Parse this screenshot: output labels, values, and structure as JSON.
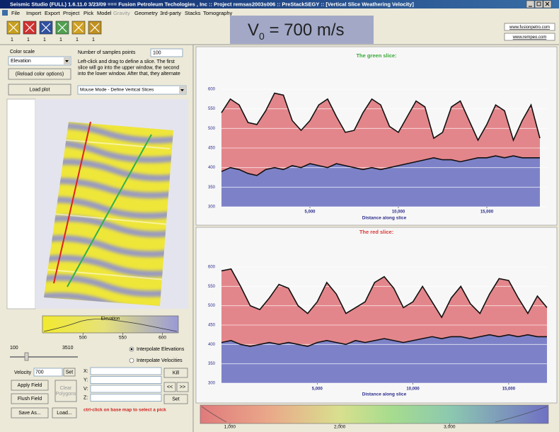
{
  "window": {
    "title": "Seismic Studio (FULL) 1.6.11.0 3/23/09 === Fusion Petroleum Techologies , Inc :: Project remsas2003s006 :: PreStackSEGY :: [Vertical Slice Weathering Velocity]"
  },
  "menu": [
    "File",
    "Import",
    "Export",
    "Project",
    "Pick",
    "Model",
    "Gravity",
    "Geometry",
    "3rd-party",
    "Stacks",
    "Tomography"
  ],
  "toolbar_counts": [
    "1",
    "1",
    "1",
    "1",
    "1",
    "1"
  ],
  "overlay": {
    "base": "V",
    "sub": "0",
    "rest": " = 700 m/s"
  },
  "links": [
    "www.fusionpetro.com",
    "www.rempeo.com"
  ],
  "left_panel": {
    "color_scale_label": "Color scale",
    "color_scale_value": "Elevation",
    "reload_button": "(Reload color options)",
    "load_plot_button": "Load plot",
    "samples_label": "Number of samples points",
    "samples_value": "100",
    "instructions": [
      "Left-click and drag to define a slice.  The first",
      "slice will go into the upper window, the second",
      "into the lower window.  After that, they alternate"
    ],
    "mouse_mode": "Mouse Mode - Define Vertical Slices",
    "elevation_scale": {
      "label": "Elevation",
      "xlim": [
        449,
        620
      ],
      "xticks": [
        500,
        550,
        600
      ]
    },
    "slider_min": "100",
    "slider_max": "3510",
    "radio_elevations": "Interpolate Elevations",
    "radio_velocities": "Interpolate Velocities",
    "velocity_label": "Velocity",
    "velocity_value": "700",
    "set_button": "Set",
    "apply_button": "Apply Field",
    "clear_button": [
      "Clear",
      "Polygons"
    ],
    "flush_button": "Flush Field",
    "save_button": "Save As...",
    "load_button": "Load...",
    "coord_labels": [
      "X:",
      "Y:",
      "V:",
      "Z:"
    ],
    "kill_button": "Kill",
    "prev_button": "<<",
    "next_button": ">>",
    "set2_button": "Set",
    "hint": "ctrl-click on base map to select a pick"
  },
  "chart_data": [
    {
      "type": "area",
      "title": "The green slice:",
      "title_color": "#3aa83a",
      "x_label": "Distance along slice",
      "x": [
        0,
        500,
        1000,
        1500,
        2000,
        2500,
        3000,
        3500,
        4000,
        4500,
        5000,
        5500,
        6000,
        6500,
        7000,
        7500,
        8000,
        8500,
        9000,
        9500,
        10000,
        10500,
        11000,
        11500,
        12000,
        12500,
        13000,
        13500,
        14000,
        14500,
        15000,
        15500,
        16000,
        16500,
        17000,
        17500,
        18000
      ],
      "series": [
        {
          "color": "#e3868b",
          "values": [
            540,
            575,
            560,
            515,
            510,
            545,
            590,
            585,
            520,
            495,
            520,
            560,
            575,
            530,
            490,
            495,
            540,
            575,
            560,
            505,
            490,
            530,
            570,
            555,
            475,
            490,
            555,
            570,
            520,
            470,
            510,
            560,
            545,
            470,
            520,
            560,
            475
          ]
        },
        {
          "color": "#7d82c8",
          "values": [
            390,
            400,
            395,
            385,
            380,
            395,
            400,
            395,
            405,
            400,
            410,
            405,
            400,
            410,
            405,
            400,
            395,
            400,
            395,
            400,
            405,
            410,
            415,
            420,
            425,
            420,
            420,
            415,
            420,
            425,
            425,
            430,
            425,
            430,
            425,
            425,
            425
          ]
        }
      ],
      "xlim": [
        0,
        18400
      ],
      "ylim": [
        300,
        600
      ],
      "xticks": [
        {
          "value": 5000,
          "label": "5,000"
        },
        {
          "value": 10000,
          "label": "10,000"
        },
        {
          "value": 15000,
          "label": "15,000"
        }
      ],
      "yticks": [
        300,
        350,
        400,
        450,
        500,
        550,
        600
      ],
      "grid": true
    },
    {
      "type": "area",
      "title": "The red slice:",
      "title_color": "#d83a3a",
      "x_label": "Distance along slice",
      "x": [
        0,
        500,
        1000,
        1500,
        2000,
        2500,
        3000,
        3500,
        4000,
        4500,
        5000,
        5500,
        6000,
        6500,
        7000,
        7500,
        8000,
        8500,
        9000,
        9500,
        10000,
        10500,
        11000,
        11500,
        12000,
        12500,
        13000,
        13500,
        14000,
        14500,
        15000,
        15500,
        16000,
        16500,
        17000
      ],
      "series": [
        {
          "color": "#e3868b",
          "values": [
            590,
            595,
            550,
            500,
            490,
            520,
            555,
            545,
            500,
            480,
            510,
            560,
            530,
            480,
            495,
            510,
            560,
            575,
            545,
            495,
            510,
            550,
            510,
            470,
            520,
            550,
            505,
            480,
            530,
            570,
            565,
            520,
            480,
            525,
            495
          ]
        },
        {
          "color": "#7d82c8",
          "values": [
            405,
            410,
            400,
            395,
            400,
            405,
            400,
            405,
            400,
            395,
            405,
            410,
            405,
            400,
            410,
            405,
            410,
            415,
            410,
            405,
            410,
            415,
            420,
            415,
            420,
            420,
            415,
            420,
            425,
            420,
            425,
            420,
            425,
            420,
            420
          ]
        }
      ],
      "xlim": [
        0,
        17000
      ],
      "ylim": [
        300,
        600
      ],
      "xticks": [
        {
          "value": 5000,
          "label": "5,000"
        },
        {
          "value": 10000,
          "label": "10,000"
        },
        {
          "value": 15000,
          "label": "15,000"
        }
      ],
      "yticks": [
        300,
        350,
        400,
        450,
        500,
        550,
        600
      ],
      "grid": true
    }
  ],
  "velocity_scale": {
    "xlim": [
      730,
      3900
    ],
    "xticks": [
      {
        "value": 1000,
        "label": "1,000"
      },
      {
        "value": 2000,
        "label": "2,000"
      },
      {
        "value": 3000,
        "label": "3,000"
      }
    ]
  }
}
